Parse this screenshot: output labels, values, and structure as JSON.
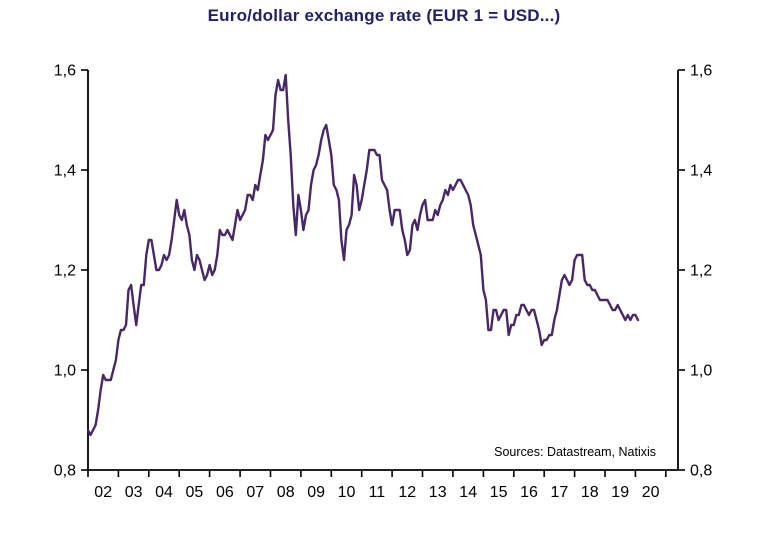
{
  "title": "Euro/dollar exchange rate (EUR 1 = USD...)",
  "colors": {
    "line": "#472766",
    "title": "#232166",
    "axis": "#000000",
    "background": "#ffffff"
  },
  "chart_data": {
    "type": "line",
    "title": "Euro/dollar exchange rate (EUR 1 = USD...)",
    "xlabel": "",
    "ylabel": "",
    "grid": false,
    "legend": "none",
    "annotation": "Sources:  Datastream,  Natixis",
    "ylim": [
      0.8,
      1.6
    ],
    "x_domain": [
      2002,
      2021.4
    ],
    "yticks": [
      {
        "value": 0.8,
        "label": "0,8"
      },
      {
        "value": 1.0,
        "label": "1,0"
      },
      {
        "value": 1.2,
        "label": "1,2"
      },
      {
        "value": 1.4,
        "label": "1,4"
      },
      {
        "value": 1.6,
        "label": "1,6"
      }
    ],
    "x_tickmarks": [
      2002,
      2003,
      2004,
      2005,
      2006,
      2007,
      2008,
      2009,
      2010,
      2011,
      2012,
      2013,
      2014,
      2015,
      2016,
      2017,
      2018,
      2019,
      2020,
      2021
    ],
    "xticks": [
      {
        "pos": 2002.5,
        "label": "02"
      },
      {
        "pos": 2003.5,
        "label": "03"
      },
      {
        "pos": 2004.5,
        "label": "04"
      },
      {
        "pos": 2005.5,
        "label": "05"
      },
      {
        "pos": 2006.5,
        "label": "06"
      },
      {
        "pos": 2007.5,
        "label": "07"
      },
      {
        "pos": 2008.5,
        "label": "08"
      },
      {
        "pos": 2009.5,
        "label": "09"
      },
      {
        "pos": 2010.5,
        "label": "10"
      },
      {
        "pos": 2011.5,
        "label": "11"
      },
      {
        "pos": 2012.5,
        "label": "12"
      },
      {
        "pos": 2013.5,
        "label": "13"
      },
      {
        "pos": 2014.5,
        "label": "14"
      },
      {
        "pos": 2015.5,
        "label": "15"
      },
      {
        "pos": 2016.5,
        "label": "16"
      },
      {
        "pos": 2017.5,
        "label": "17"
      },
      {
        "pos": 2018.5,
        "label": "18"
      },
      {
        "pos": 2019.5,
        "label": "19"
      },
      {
        "pos": 2020.5,
        "label": "20"
      }
    ],
    "series": [
      {
        "name": "EUR/USD exchange rate",
        "start_year": 2002,
        "frequency": "monthly",
        "values": [
          0.88,
          0.87,
          0.88,
          0.89,
          0.92,
          0.96,
          0.99,
          0.98,
          0.98,
          0.98,
          1.0,
          1.02,
          1.06,
          1.08,
          1.08,
          1.09,
          1.16,
          1.17,
          1.13,
          1.09,
          1.13,
          1.17,
          1.17,
          1.23,
          1.26,
          1.26,
          1.23,
          1.2,
          1.2,
          1.21,
          1.23,
          1.22,
          1.23,
          1.26,
          1.3,
          1.34,
          1.31,
          1.3,
          1.32,
          1.29,
          1.27,
          1.22,
          1.2,
          1.23,
          1.22,
          1.2,
          1.18,
          1.19,
          1.21,
          1.19,
          1.2,
          1.23,
          1.28,
          1.27,
          1.27,
          1.28,
          1.27,
          1.26,
          1.29,
          1.32,
          1.3,
          1.31,
          1.32,
          1.35,
          1.35,
          1.34,
          1.37,
          1.36,
          1.39,
          1.42,
          1.47,
          1.46,
          1.47,
          1.48,
          1.55,
          1.58,
          1.56,
          1.56,
          1.59,
          1.5,
          1.43,
          1.33,
          1.27,
          1.35,
          1.32,
          1.28,
          1.31,
          1.32,
          1.37,
          1.4,
          1.41,
          1.43,
          1.46,
          1.48,
          1.49,
          1.46,
          1.43,
          1.37,
          1.36,
          1.34,
          1.26,
          1.22,
          1.28,
          1.29,
          1.31,
          1.39,
          1.37,
          1.32,
          1.34,
          1.37,
          1.4,
          1.44,
          1.44,
          1.44,
          1.43,
          1.43,
          1.38,
          1.37,
          1.36,
          1.32,
          1.29,
          1.32,
          1.32,
          1.32,
          1.28,
          1.26,
          1.23,
          1.24,
          1.29,
          1.3,
          1.28,
          1.31,
          1.33,
          1.34,
          1.3,
          1.3,
          1.3,
          1.32,
          1.31,
          1.33,
          1.34,
          1.36,
          1.35,
          1.37,
          1.36,
          1.37,
          1.38,
          1.38,
          1.37,
          1.36,
          1.35,
          1.33,
          1.29,
          1.27,
          1.25,
          1.23,
          1.16,
          1.14,
          1.08,
          1.08,
          1.12,
          1.12,
          1.1,
          1.11,
          1.12,
          1.12,
          1.07,
          1.09,
          1.09,
          1.11,
          1.11,
          1.13,
          1.13,
          1.12,
          1.11,
          1.12,
          1.12,
          1.1,
          1.08,
          1.05,
          1.06,
          1.06,
          1.07,
          1.07,
          1.1,
          1.12,
          1.15,
          1.18,
          1.19,
          1.18,
          1.17,
          1.18,
          1.22,
          1.23,
          1.23,
          1.23,
          1.18,
          1.17,
          1.17,
          1.16,
          1.16,
          1.15,
          1.14,
          1.14,
          1.14,
          1.14,
          1.13,
          1.12,
          1.12,
          1.13,
          1.12,
          1.11,
          1.1,
          1.11,
          1.1,
          1.11,
          1.11,
          1.1
        ]
      }
    ]
  }
}
